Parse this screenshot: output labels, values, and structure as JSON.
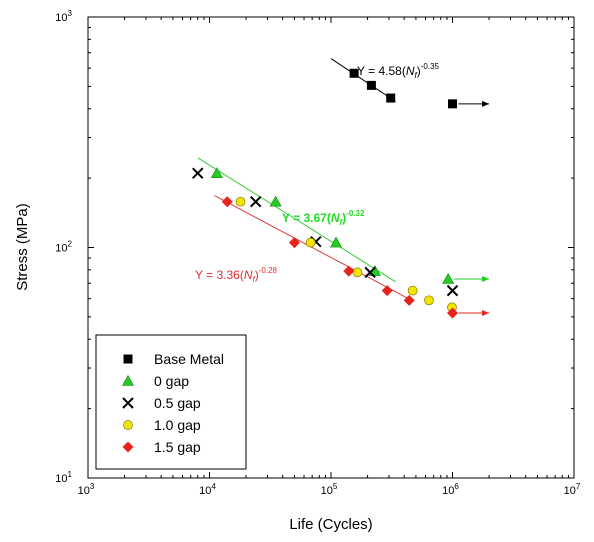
{
  "chart_data": {
    "type": "scatter",
    "title": "",
    "xlabel": "Life (Cycles)",
    "ylabel": "Stress (MPa)",
    "xscale": "log",
    "yscale": "log",
    "xlim": [
      1000,
      10000000
    ],
    "ylim": [
      10,
      1000
    ],
    "x_ticks": [
      {
        "base": "10",
        "exp": "3"
      },
      {
        "base": "10",
        "exp": "4"
      },
      {
        "base": "10",
        "exp": "5"
      },
      {
        "base": "10",
        "exp": "6"
      },
      {
        "base": "10",
        "exp": "7"
      }
    ],
    "y_ticks": [
      {
        "base": "10",
        "exp": "1"
      },
      {
        "base": "10",
        "exp": "2"
      },
      {
        "base": "10",
        "exp": "3"
      }
    ],
    "grid": false,
    "legend_position": "bottom-left",
    "series": [
      {
        "name": "Base Metal",
        "marker": "square",
        "color": "#000000",
        "points": [
          [
            155000,
            570
          ],
          [
            215000,
            505
          ],
          [
            310000,
            445
          ],
          [
            1000000,
            420
          ]
        ],
        "runout": [
          1000000
        ]
      },
      {
        "name": "0 gap",
        "marker": "triangle",
        "color": "#22cc22",
        "points": [
          [
            11500,
            210
          ],
          [
            35000,
            158
          ],
          [
            110000,
            105
          ],
          [
            230000,
            79
          ],
          [
            920000,
            73
          ]
        ],
        "runout": [
          920000
        ]
      },
      {
        "name": "0.5 gap",
        "marker": "x",
        "color": "#000000",
        "points": [
          [
            8000,
            210
          ],
          [
            24000,
            158
          ],
          [
            75000,
            106
          ],
          [
            210000,
            78
          ],
          [
            1000000,
            65
          ]
        ],
        "runout": []
      },
      {
        "name": "1.0 gap",
        "marker": "circle",
        "color": "#f2e600",
        "points": [
          [
            18000,
            158
          ],
          [
            68000,
            105
          ],
          [
            165000,
            78
          ],
          [
            470000,
            65
          ],
          [
            640000,
            59
          ],
          [
            990000,
            55
          ]
        ],
        "runout": []
      },
      {
        "name": "1.5 gap",
        "marker": "diamond",
        "color": "#e8231e",
        "points": [
          [
            14000,
            158
          ],
          [
            50000,
            105
          ],
          [
            140000,
            79
          ],
          [
            290000,
            65
          ],
          [
            440000,
            59
          ],
          [
            1000000,
            52
          ]
        ],
        "runout": [
          1000000
        ]
      }
    ],
    "fit_lines": [
      {
        "series": "Base Metal",
        "color": "#000000",
        "from": [
          100000,
          660
        ],
        "to": [
          340000,
          430
        ]
      },
      {
        "series": "0 gap",
        "color": "#33cc33",
        "from": [
          8000,
          245
        ],
        "to": [
          340000,
          71
        ]
      },
      {
        "series": "1.5 gap",
        "color": "#e03a3a",
        "from": [
          11000,
          168
        ],
        "to": [
          460000,
          59
        ]
      }
    ],
    "runout_arrow_end_x": 2000000,
    "annotations": [
      {
        "series": "Base Metal",
        "color": "#000000",
        "bold": false,
        "prefix": "Y = 4.58(",
        "var": "N",
        "sub": "f",
        "suffix": ")",
        "exponent": "-0.35"
      },
      {
        "series": "0 gap",
        "color": "#22dd22",
        "bold": true,
        "prefix": "Y = 3.67(",
        "var": "N",
        "sub": "f",
        "suffix": ")",
        "exponent": "-0.32"
      },
      {
        "series": "1.5 gap",
        "color": "#e03030",
        "bold": false,
        "prefix": "Y = 3.36(",
        "var": "N",
        "sub": "f",
        "suffix": ")",
        "exponent": "-0.28"
      }
    ]
  }
}
